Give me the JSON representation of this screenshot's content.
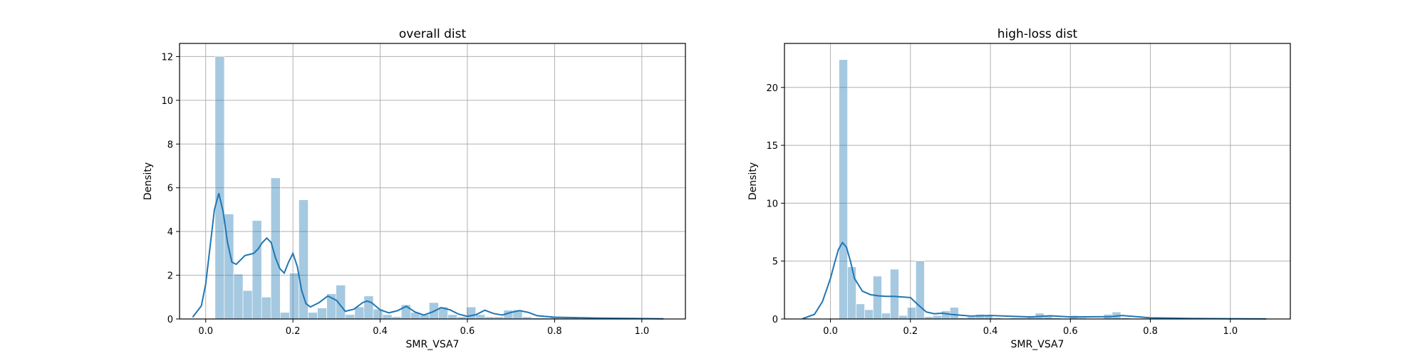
{
  "colors": {
    "bar": "#1f77b4",
    "line": "#1f77b4",
    "grid": "#b0b0b0",
    "axis": "#000000"
  },
  "chart_data": [
    {
      "type": "bar",
      "title": "overall dist",
      "xlabel": "SMR_VSA7",
      "ylabel": "Density",
      "xlim": [
        -0.06,
        1.1
      ],
      "ylim": [
        0,
        12.6
      ],
      "xticks": [
        "0.0",
        "0.2",
        "0.4",
        "0.6",
        "0.8",
        "1.0"
      ],
      "yticks": [
        "0",
        "2",
        "4",
        "6",
        "8",
        "10",
        "12"
      ],
      "grid": true,
      "hist": {
        "bin_start": 0.0214,
        "bin_width": 0.02135,
        "values": [
          12.0,
          4.8,
          2.05,
          1.3,
          4.5,
          1.0,
          6.45,
          0.3,
          2.1,
          5.45,
          0.3,
          0.5,
          1.15,
          1.55,
          0.2,
          0.55,
          1.05,
          0.45,
          0.2,
          0.1,
          0.65,
          0.3,
          0.2,
          0.75,
          0.55,
          0.2,
          0.1,
          0.55,
          0.2,
          0.1,
          0.1,
          0.4,
          0.42,
          0.1,
          0.05,
          0.05,
          0.08,
          0.05,
          0.05,
          0.03,
          0.03,
          0.02,
          0.02,
          0.02,
          0.01,
          0.01,
          0.01
        ]
      },
      "kde": {
        "x": [
          -0.03,
          -0.01,
          0.0,
          0.01,
          0.02,
          0.03,
          0.04,
          0.05,
          0.06,
          0.07,
          0.08,
          0.09,
          0.1,
          0.11,
          0.12,
          0.13,
          0.14,
          0.15,
          0.16,
          0.17,
          0.18,
          0.19,
          0.2,
          0.21,
          0.22,
          0.23,
          0.24,
          0.26,
          0.28,
          0.3,
          0.32,
          0.34,
          0.36,
          0.37,
          0.38,
          0.4,
          0.42,
          0.44,
          0.46,
          0.48,
          0.5,
          0.52,
          0.54,
          0.56,
          0.58,
          0.6,
          0.62,
          0.64,
          0.66,
          0.68,
          0.7,
          0.72,
          0.74,
          0.76,
          0.8,
          0.85,
          0.9,
          1.0,
          1.05
        ],
        "y": [
          0.08,
          0.6,
          1.6,
          3.3,
          5.0,
          5.75,
          4.9,
          3.5,
          2.6,
          2.5,
          2.7,
          2.9,
          2.95,
          3.0,
          3.2,
          3.5,
          3.7,
          3.5,
          2.8,
          2.3,
          2.1,
          2.6,
          3.0,
          2.4,
          1.3,
          0.7,
          0.55,
          0.75,
          1.05,
          0.85,
          0.35,
          0.45,
          0.75,
          0.82,
          0.75,
          0.42,
          0.28,
          0.38,
          0.58,
          0.32,
          0.18,
          0.32,
          0.52,
          0.42,
          0.22,
          0.12,
          0.2,
          0.4,
          0.25,
          0.18,
          0.3,
          0.38,
          0.3,
          0.15,
          0.08,
          0.06,
          0.04,
          0.02,
          0.01
        ]
      }
    },
    {
      "type": "bar",
      "title": "high-loss dist",
      "xlabel": "SMR_VSA7",
      "ylabel": "Density",
      "xlim": [
        -0.115,
        1.15
      ],
      "ylim": [
        0,
        23.8
      ],
      "xticks": [
        "0.0",
        "0.2",
        "0.4",
        "0.6",
        "0.8",
        "1.0"
      ],
      "yticks": [
        "0",
        "5",
        "10",
        "15",
        "20"
      ],
      "grid": true,
      "hist": {
        "bin_start": 0.0214,
        "bin_width": 0.02135,
        "values": [
          22.4,
          4.5,
          1.3,
          0.8,
          3.7,
          0.5,
          4.3,
          0.3,
          1.0,
          5.0,
          0.2,
          0.3,
          0.7,
          1.0,
          0.1,
          0.2,
          0.4,
          0.3,
          0.1,
          0.05,
          0.1,
          0.1,
          0.2,
          0.5,
          0.3,
          0.1,
          0.05,
          0.3,
          0.1,
          0.05,
          0.05,
          0.4,
          0.6,
          0.1,
          0.02,
          0.02,
          0.03,
          0.02,
          0.02,
          0.01,
          0.01,
          0.01,
          0.01,
          0.01,
          0.005,
          0.005,
          0.005
        ]
      },
      "kde": {
        "x": [
          -0.07,
          -0.04,
          -0.02,
          0.0,
          0.01,
          0.02,
          0.03,
          0.04,
          0.05,
          0.06,
          0.08,
          0.1,
          0.12,
          0.14,
          0.16,
          0.18,
          0.2,
          0.22,
          0.24,
          0.26,
          0.28,
          0.3,
          0.35,
          0.4,
          0.5,
          0.55,
          0.6,
          0.7,
          0.73,
          0.8,
          0.9,
          1.0,
          1.09
        ],
        "y": [
          0.02,
          0.4,
          1.5,
          3.5,
          4.8,
          6.0,
          6.6,
          6.2,
          5.0,
          3.5,
          2.4,
          2.1,
          2.0,
          1.95,
          1.95,
          1.9,
          1.85,
          1.2,
          0.6,
          0.45,
          0.5,
          0.4,
          0.25,
          0.3,
          0.18,
          0.28,
          0.18,
          0.2,
          0.3,
          0.1,
          0.05,
          0.02,
          0.01
        ]
      }
    }
  ]
}
